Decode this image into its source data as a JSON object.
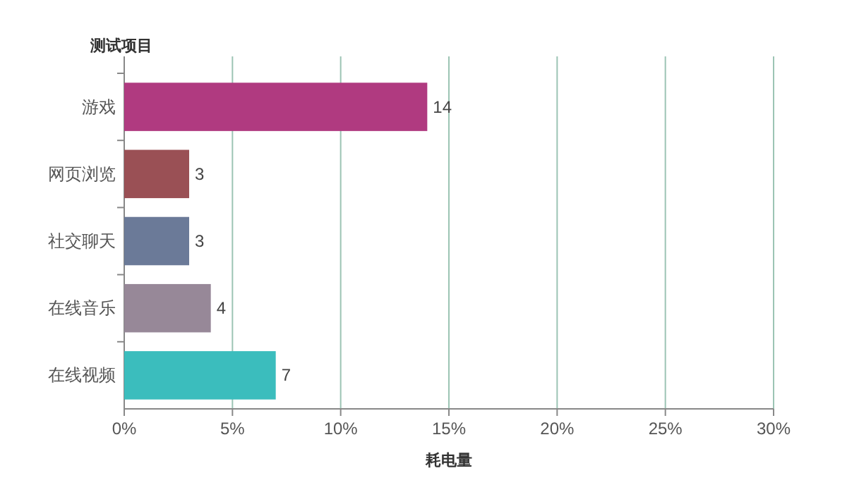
{
  "chart_data": {
    "type": "bar",
    "orientation": "horizontal",
    "ylabel": "测试项目",
    "xlabel": "耗电量",
    "categories": [
      "游戏",
      "网页浏览",
      "社交聊天",
      "在线音乐",
      "在线视频"
    ],
    "values": [
      14,
      3,
      3,
      4,
      7
    ],
    "colors": [
      "#b03a80",
      "#9a5055",
      "#6b7a98",
      "#978898",
      "#3bbdbd"
    ],
    "xlim": [
      0,
      30
    ],
    "xticks": [
      {
        "value": 0,
        "label": "0%"
      },
      {
        "value": 5,
        "label": "5%"
      },
      {
        "value": 10,
        "label": "10%"
      },
      {
        "value": 15,
        "label": "15%"
      },
      {
        "value": 20,
        "label": "20%"
      },
      {
        "value": 25,
        "label": "25%"
      },
      {
        "value": 30,
        "label": "30%"
      }
    ],
    "grid": "x",
    "data_labels": true
  }
}
